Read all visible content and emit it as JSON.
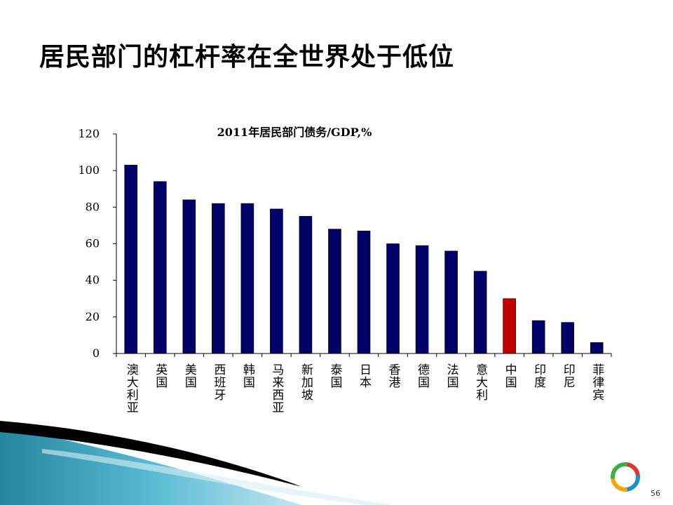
{
  "slide": {
    "title": "居民部门的杠杆率在全世界处于低位",
    "page_number": "56"
  },
  "colors": {
    "bar_default": "#000066",
    "bar_highlight": "#C00000",
    "accent_teal": "#1E8CA6"
  },
  "logo": {
    "icon": "ring-logo-icon"
  },
  "chart_data": {
    "type": "bar",
    "title": "2011年居民部门债务/GDP,%",
    "xlabel": "",
    "ylabel": "",
    "ylim": [
      0,
      120
    ],
    "yticks": [
      0,
      20,
      40,
      60,
      80,
      100,
      120
    ],
    "grid": false,
    "legend": "none",
    "categories": [
      "澳大利亚",
      "英国",
      "美国",
      "西班牙",
      "韩国",
      "马来西亚",
      "新加坡",
      "泰国",
      "日本",
      "香港",
      "德国",
      "法国",
      "意大利",
      "中国",
      "印度",
      "印尼",
      "菲律宾"
    ],
    "values": [
      103,
      94,
      84,
      82,
      82,
      79,
      75,
      68,
      67,
      60,
      59,
      56,
      45,
      30,
      18,
      17,
      6
    ],
    "highlight": [
      "中国"
    ]
  }
}
